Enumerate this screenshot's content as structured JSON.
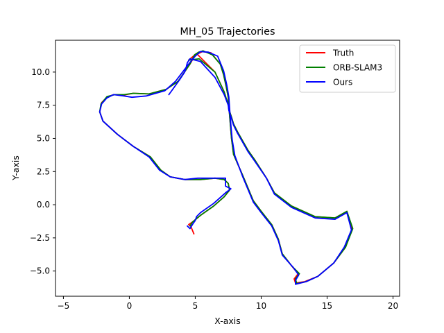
{
  "chart_data": {
    "type": "line",
    "title": "MH_05 Trajectories",
    "xlabel": "X-axis",
    "ylabel": "Y-axis",
    "xlim": [
      -5.6,
      20.5
    ],
    "ylim": [
      -6.9,
      12.4
    ],
    "xticks": [
      -5,
      0,
      5,
      10,
      15,
      20
    ],
    "yticks": [
      -5.0,
      -2.5,
      0.0,
      2.5,
      5.0,
      7.5,
      10.0
    ],
    "ytick_labels": [
      "−5.0",
      "−2.5",
      "0.0",
      "2.5",
      "5.0",
      "7.5",
      "10.0"
    ],
    "xtick_labels": [
      "−5",
      "0",
      "5",
      "10",
      "15",
      "20"
    ],
    "grid": false,
    "legend_position": "top-right",
    "series": [
      {
        "name": "Truth",
        "color": "#ff0000",
        "x": [
          4.9,
          4.65,
          4.5,
          4.8,
          5.4,
          6.4,
          7.2,
          7.6,
          7.5,
          7.2,
          6.5,
          5.4,
          4.2,
          3.1,
          2.4,
          1.6,
          0.3,
          -0.9,
          -2.0,
          -2.25,
          -2.1,
          -1.7,
          -1.2,
          -0.5,
          0.3,
          1.5,
          2.8,
          3.7,
          4.6,
          4.95,
          5.25,
          5.55,
          6.2,
          6.9,
          7.15,
          7.35,
          7.5,
          7.55,
          7.65,
          7.75,
          7.9,
          8.6,
          9.4,
          10.0,
          10.8,
          11.3,
          11.6,
          12.3,
          12.8,
          12.5,
          12.6,
          13.3,
          14.3,
          15.5,
          16.4,
          16.9,
          16.5,
          15.6,
          14.1,
          12.3,
          11.0,
          10.4,
          9.5,
          9.0,
          8.6,
          8.2,
          7.9,
          7.75,
          7.55,
          7.5,
          7.35,
          7.2,
          6.5,
          5.1,
          4.5
        ],
        "y": [
          -2.2,
          -1.6,
          -1.5,
          -1.3,
          -0.8,
          -0.1,
          0.6,
          1.1,
          1.6,
          1.9,
          2.0,
          1.9,
          1.9,
          2.1,
          2.6,
          3.6,
          4.4,
          5.3,
          6.3,
          7.0,
          7.7,
          8.1,
          8.3,
          8.25,
          8.4,
          8.35,
          8.7,
          9.3,
          10.6,
          11.2,
          11.4,
          11.55,
          11.45,
          10.6,
          9.8,
          8.9,
          8.1,
          7.4,
          6.2,
          5.0,
          3.8,
          2.2,
          0.3,
          -0.5,
          -1.5,
          -2.6,
          -3.7,
          -4.6,
          -5.2,
          -5.6,
          -5.9,
          -5.8,
          -5.4,
          -4.4,
          -3.2,
          -1.8,
          -0.5,
          -1.0,
          -0.9,
          -0.1,
          0.9,
          2.0,
          3.4,
          4.1,
          4.8,
          5.5,
          6.1,
          6.6,
          7.2,
          7.6,
          8.0,
          8.5,
          10.0,
          11.4,
          10.9
        ]
      },
      {
        "name": "ORB-SLAM3",
        "color": "#008000",
        "x": [
          4.6,
          4.8,
          5.4,
          6.4,
          7.2,
          7.6,
          7.5,
          7.2,
          6.5,
          5.4,
          4.2,
          3.1,
          2.4,
          1.6,
          0.3,
          -0.9,
          -2.0,
          -2.25,
          -2.15,
          -1.7,
          -1.1,
          -0.4,
          0.3,
          1.5,
          2.8,
          3.7,
          4.6,
          4.95,
          5.25,
          5.6,
          6.3,
          6.9,
          7.15,
          7.35,
          7.5,
          7.55,
          7.65,
          7.75,
          7.9,
          8.6,
          9.4,
          10.0,
          10.8,
          11.3,
          11.6,
          12.3,
          12.9,
          12.6,
          12.7,
          13.4,
          14.3,
          15.5,
          16.4,
          16.95,
          16.5,
          15.6,
          14.1,
          12.3,
          11.0,
          10.4,
          9.5,
          9.0,
          8.6,
          8.2,
          7.9,
          7.75,
          7.55,
          7.5,
          7.35,
          7.2,
          6.5,
          5.3,
          4.5
        ],
        "y": [
          -1.6,
          -1.3,
          -0.8,
          -0.1,
          0.6,
          1.1,
          1.6,
          1.9,
          2.0,
          1.9,
          1.9,
          2.1,
          2.6,
          3.6,
          4.4,
          5.3,
          6.3,
          7.0,
          7.6,
          8.15,
          8.3,
          8.3,
          8.4,
          8.35,
          8.7,
          9.3,
          10.6,
          11.3,
          11.5,
          11.6,
          11.3,
          10.6,
          9.8,
          8.9,
          8.1,
          7.4,
          6.2,
          5.0,
          3.8,
          2.2,
          0.3,
          -0.5,
          -1.5,
          -2.6,
          -3.7,
          -4.6,
          -5.2,
          -5.6,
          -5.95,
          -5.8,
          -5.4,
          -4.4,
          -3.2,
          -1.8,
          -0.5,
          -1.0,
          -0.9,
          -0.1,
          0.9,
          2.0,
          3.4,
          4.1,
          4.8,
          5.5,
          6.1,
          6.6,
          7.2,
          7.6,
          8.0,
          8.5,
          10.0,
          11.0,
          10.9
        ]
      },
      {
        "name": "Ours",
        "color": "#0000ff",
        "x": [
          4.4,
          4.6,
          4.85,
          5.0,
          5.1,
          5.4,
          6.4,
          7.3,
          7.7,
          7.3,
          7.3,
          6.6,
          5.2,
          4.2,
          3.1,
          2.3,
          1.5,
          0.3,
          -0.9,
          -2.0,
          -2.25,
          -2.1,
          -1.7,
          -1.2,
          -0.4,
          0.2,
          1.3,
          2.7,
          3.5,
          4.5,
          5.0,
          5.4,
          6.0,
          6.7,
          7.15,
          7.4,
          7.55,
          7.6,
          7.7,
          7.8,
          8.0,
          8.6,
          9.4,
          10.0,
          10.8,
          11.3,
          11.6,
          12.4,
          12.85,
          12.6,
          12.6,
          13.4,
          14.3,
          15.5,
          16.3,
          16.85,
          16.5,
          15.6,
          14.1,
          12.3,
          11.0,
          10.4,
          9.5,
          9.0,
          8.6,
          8.2,
          7.9,
          7.75,
          7.55,
          7.5,
          7.35,
          7.2,
          6.5,
          5.4,
          4.6,
          4.4,
          4.3,
          4.2,
          3.8,
          3.0
        ],
        "y": [
          -1.6,
          -1.8,
          -1.4,
          -1.2,
          -0.9,
          -0.6,
          0.1,
          0.9,
          1.2,
          1.4,
          2.0,
          2.0,
          2.0,
          1.9,
          2.1,
          2.6,
          3.6,
          4.4,
          5.3,
          6.3,
          7.0,
          7.6,
          8.05,
          8.3,
          8.2,
          8.1,
          8.2,
          8.6,
          9.3,
          10.6,
          11.2,
          11.55,
          11.5,
          11.2,
          10.1,
          9.0,
          8.1,
          7.3,
          6.0,
          4.9,
          3.7,
          2.1,
          0.2,
          -0.6,
          -1.6,
          -2.7,
          -3.8,
          -4.7,
          -5.3,
          -5.7,
          -6.0,
          -5.8,
          -5.4,
          -4.4,
          -3.2,
          -1.9,
          -0.6,
          -1.1,
          -1.0,
          -0.2,
          0.8,
          2.0,
          3.3,
          4.0,
          4.7,
          5.4,
          6.0,
          6.5,
          7.1,
          7.5,
          7.9,
          8.3,
          9.6,
          10.8,
          11.0,
          10.7,
          10.3,
          10.0,
          9.4,
          8.3
        ]
      }
    ]
  }
}
